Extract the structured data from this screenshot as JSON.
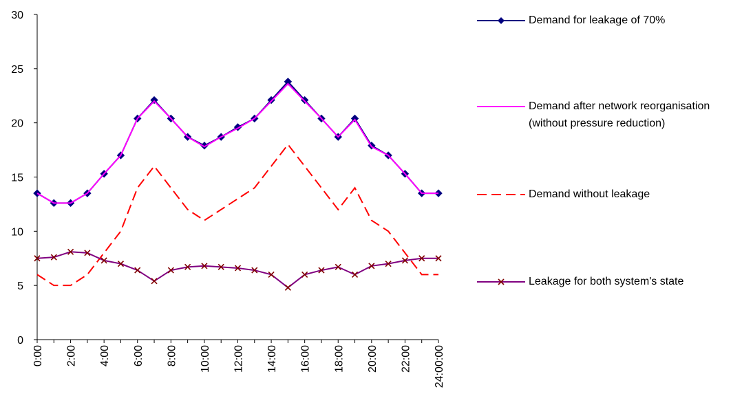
{
  "chart_data": {
    "type": "line",
    "categories": [
      "0:00",
      null,
      "2:00",
      null,
      "4:00",
      null,
      "6:00",
      null,
      "8:00",
      null,
      "10:00",
      null,
      "12:00",
      null,
      "14:00",
      null,
      "16:00",
      null,
      "18:00",
      null,
      "20:00",
      null,
      "22:00",
      null,
      "24:00:00"
    ],
    "series": [
      {
        "name": "Demand for leakage of 70%",
        "color": "#000080",
        "marker": "diamond",
        "dash": false,
        "values": [
          13.5,
          12.6,
          12.6,
          13.5,
          15.3,
          17.0,
          20.4,
          22.1,
          20.4,
          18.7,
          17.9,
          18.7,
          19.6,
          20.4,
          22.1,
          23.8,
          22.1,
          20.4,
          18.7,
          20.4,
          17.9,
          17.0,
          15.3,
          13.5,
          13.5
        ]
      },
      {
        "name": "Demand after network reorganisation (without pressure reduction)",
        "color": "#ff00ff",
        "marker": "none",
        "dash": false,
        "values": [
          13.5,
          12.6,
          12.6,
          13.5,
          15.3,
          17.0,
          20.4,
          22.0,
          20.4,
          18.7,
          17.8,
          18.7,
          19.5,
          20.4,
          22.0,
          23.6,
          22.0,
          20.4,
          18.7,
          20.3,
          17.8,
          17.0,
          15.3,
          13.5,
          13.5
        ]
      },
      {
        "name": "Demand without leakage",
        "color": "#ff0000",
        "marker": "none",
        "dash": true,
        "values": [
          6,
          5,
          5,
          6,
          8,
          10,
          14,
          16,
          14,
          12,
          11,
          12,
          13,
          14,
          16,
          18,
          16,
          14,
          12,
          14,
          11,
          10,
          8,
          6,
          6
        ]
      },
      {
        "name": "Leakage for both system's state",
        "color": "#800080",
        "marker": "x",
        "markerColor": "#800000",
        "dash": false,
        "values": [
          7.5,
          7.6,
          8.1,
          8.0,
          7.3,
          7.0,
          6.4,
          5.4,
          6.4,
          6.7,
          6.8,
          6.7,
          6.6,
          6.4,
          6.0,
          4.8,
          6.0,
          6.4,
          6.7,
          6.0,
          6.8,
          7.0,
          7.3,
          7.5,
          7.5
        ]
      }
    ],
    "ylim": [
      0,
      30
    ],
    "yticks": [
      0,
      5,
      10,
      15,
      20,
      25,
      30
    ],
    "grid": false,
    "legend": "right"
  }
}
